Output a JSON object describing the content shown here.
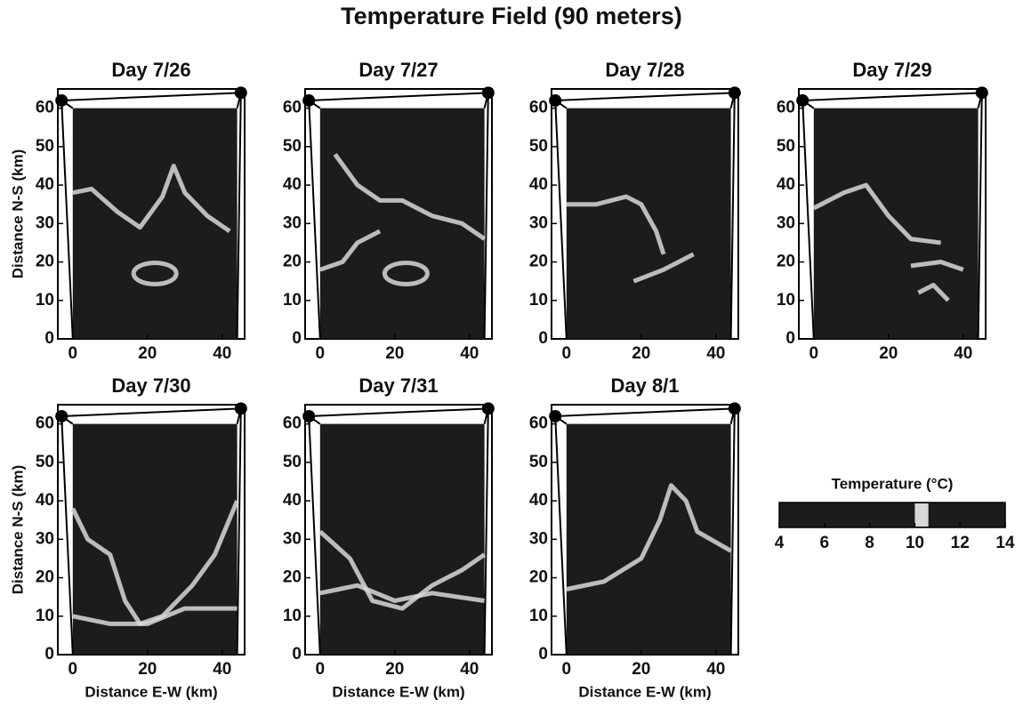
{
  "title": "Temperature Field (90 meters)",
  "chart_data": [
    {
      "type": "field",
      "title": "Day 7/26",
      "ylabel": "Distance N-S (km)",
      "xlim": [
        -4,
        46
      ],
      "xticks": [
        0,
        20,
        40
      ],
      "ylim": [
        0,
        65
      ],
      "yticks": [
        0,
        10,
        20,
        30,
        40,
        50,
        60
      ]
    },
    {
      "type": "field",
      "title": "Day 7/27",
      "xlim": [
        -4,
        46
      ],
      "xticks": [
        0,
        20,
        40
      ],
      "ylim": [
        0,
        65
      ],
      "yticks": [
        0,
        10,
        20,
        30,
        40,
        50,
        60
      ]
    },
    {
      "type": "field",
      "title": "Day 7/28",
      "xlim": [
        -4,
        46
      ],
      "xticks": [
        0,
        20,
        40
      ],
      "ylim": [
        0,
        65
      ],
      "yticks": [
        0,
        10,
        20,
        30,
        40,
        50,
        60
      ]
    },
    {
      "type": "field",
      "title": "Day 7/29",
      "xlim": [
        -4,
        46
      ],
      "xticks": [
        0,
        20,
        40
      ],
      "ylim": [
        0,
        65
      ],
      "yticks": [
        0,
        10,
        20,
        30,
        40,
        50,
        60
      ]
    },
    {
      "type": "field",
      "title": "Day 7/30",
      "ylabel": "Distance N-S (km)",
      "xlabel": "Distance E-W (km)",
      "xlim": [
        -4,
        46
      ],
      "xticks": [
        0,
        20,
        40
      ],
      "ylim": [
        0,
        65
      ],
      "yticks": [
        0,
        10,
        20,
        30,
        40,
        50,
        60
      ]
    },
    {
      "type": "field",
      "title": "Day 7/31",
      "xlabel": "Distance E-W (km)",
      "xlim": [
        -4,
        46
      ],
      "xticks": [
        0,
        20,
        40
      ],
      "ylim": [
        0,
        65
      ],
      "yticks": [
        0,
        10,
        20,
        30,
        40,
        50,
        60
      ]
    },
    {
      "type": "field",
      "title": "Day 8/1",
      "xlabel": "Distance E-W (km)",
      "xlim": [
        -4,
        46
      ],
      "xticks": [
        0,
        20,
        40
      ],
      "ylim": [
        0,
        65
      ],
      "yticks": [
        0,
        10,
        20,
        30,
        40,
        50,
        60
      ]
    },
    {
      "type": "colorbar",
      "title": "Temperature (°C)",
      "xlim": [
        4,
        14
      ],
      "xticks": [
        4,
        6,
        8,
        10,
        12,
        14
      ]
    }
  ]
}
